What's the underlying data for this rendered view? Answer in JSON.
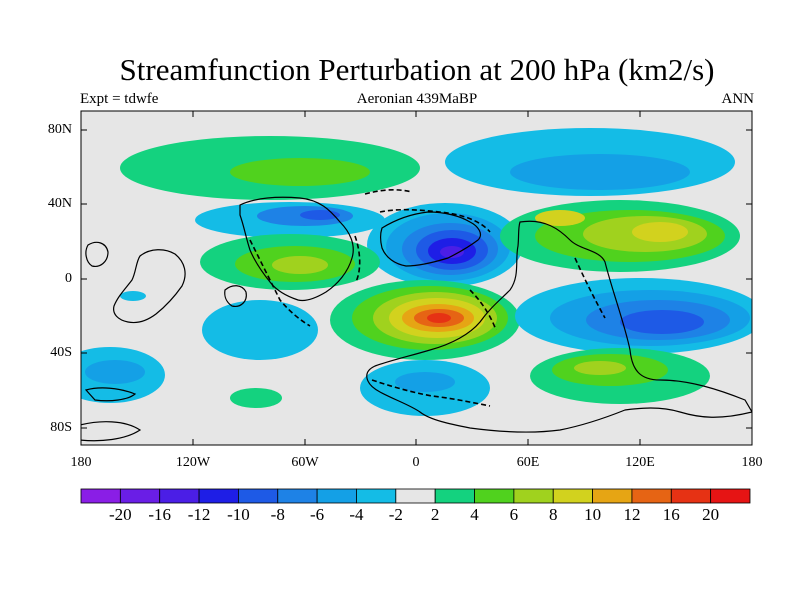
{
  "map": {
    "title": "Streamfunction Perturbation at 200 hPa (km2/s)",
    "left_label": "Expt = tdwfe",
    "center_label": "Aeronian 439MaBP",
    "right_label": "ANN",
    "projection": "cylindrical-equidistant",
    "lat_ticks": [
      "80N",
      "40N",
      "0",
      "40S",
      "80S"
    ],
    "lon_ticks": [
      "180",
      "120W",
      "60W",
      "0",
      "60E",
      "120E",
      "180"
    ],
    "background_color": "#e6e6e6"
  },
  "colorbar": {
    "labels": [
      "-20",
      "-16",
      "-12",
      "-10",
      "-8",
      "-6",
      "-4",
      "-2",
      "2",
      "4",
      "6",
      "8",
      "10",
      "12",
      "16",
      "20"
    ],
    "colors": [
      "#8a1ee6",
      "#6a1ee6",
      "#4b1ee6",
      "#1e1ee6",
      "#1e5ae6",
      "#1e82e6",
      "#14a0e6",
      "#14bce6",
      "#e6e6e6",
      "#14d27f",
      "#50d21e",
      "#a0d21e",
      "#d2d21e",
      "#e6a514",
      "#e66414",
      "#e63214",
      "#e61414"
    ]
  }
}
